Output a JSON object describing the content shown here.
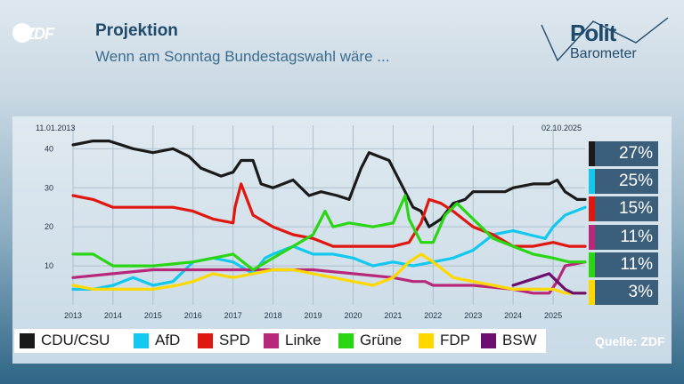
{
  "header": {
    "logo": "ZDF",
    "title": "Projektion",
    "subtitle": "Wenn am Sonntag Bundestagswahl wäre ...",
    "brand_top": "Polit",
    "brand_bottom": "Barometer"
  },
  "source": "Quelle: ZDF",
  "chart_data": {
    "type": "line",
    "start_date": "11.01.2013",
    "end_date": "02.10.2025",
    "x_tick_labels": [
      "2013",
      "2014",
      "2015",
      "2016",
      "2017",
      "2018",
      "2019",
      "2020",
      "2021",
      "2022",
      "2023",
      "2024",
      "2025"
    ],
    "y_tick_labels": [
      "10",
      "20",
      "30",
      "40"
    ],
    "xlim": [
      2013.0,
      2025.8
    ],
    "ylim": [
      0,
      46
    ],
    "grid": true,
    "legend_position": "bottom",
    "series": [
      {
        "name": "CDU/CSU",
        "color": "#1a1a1a",
        "current": "27%",
        "x": [
          2013.0,
          2013.5,
          2013.9,
          2014.5,
          2015.0,
          2015.5,
          2015.9,
          2016.2,
          2016.7,
          2017.0,
          2017.2,
          2017.5,
          2017.7,
          2018.0,
          2018.5,
          2018.9,
          2019.2,
          2019.6,
          2019.9,
          2020.2,
          2020.4,
          2020.9,
          2021.0,
          2021.3,
          2021.5,
          2021.7,
          2021.9,
          2022.2,
          2022.5,
          2022.8,
          2023.0,
          2023.4,
          2023.8,
          2024.0,
          2024.5,
          2024.9,
          2025.1,
          2025.3,
          2025.6,
          2025.8
        ],
        "y": [
          41,
          42,
          42,
          40,
          39,
          40,
          38,
          35,
          33,
          34,
          37,
          37,
          31,
          30,
          32,
          28,
          29,
          28,
          27,
          35,
          39,
          37,
          35,
          29,
          25,
          24,
          20,
          22,
          26,
          27,
          29,
          29,
          29,
          30,
          31,
          31,
          32,
          29,
          27,
          27
        ]
      },
      {
        "name": "AfD",
        "color": "#12c8ee",
        "current": "25%",
        "x": [
          2013.0,
          2013.5,
          2014.0,
          2014.5,
          2015.0,
          2015.5,
          2015.8,
          2016.0,
          2016.5,
          2017.0,
          2017.5,
          2017.8,
          2018.0,
          2018.5,
          2019.0,
          2019.5,
          2020.0,
          2020.5,
          2021.0,
          2021.5,
          2022.0,
          2022.5,
          2023.0,
          2023.5,
          2024.0,
          2024.4,
          2024.8,
          2025.0,
          2025.3,
          2025.8
        ],
        "y": [
          4,
          4,
          5,
          7,
          5,
          6,
          9,
          11,
          12,
          11,
          8,
          12,
          13,
          15,
          13,
          13,
          12,
          10,
          11,
          10,
          11,
          12,
          14,
          18,
          19,
          18,
          17,
          20,
          23,
          25
        ]
      },
      {
        "name": "SPD",
        "color": "#e0170f",
        "current": "15%",
        "x": [
          2013.0,
          2013.5,
          2014.0,
          2014.5,
          2015.0,
          2015.5,
          2016.0,
          2016.5,
          2017.0,
          2017.05,
          2017.2,
          2017.5,
          2018.0,
          2018.5,
          2019.0,
          2019.5,
          2020.0,
          2020.5,
          2021.0,
          2021.4,
          2021.7,
          2021.9,
          2022.2,
          2022.5,
          2023.0,
          2023.5,
          2024.0,
          2024.5,
          2025.0,
          2025.4,
          2025.8
        ],
        "y": [
          28,
          27,
          25,
          25,
          25,
          25,
          24,
          22,
          21,
          25,
          31,
          23,
          20,
          18,
          17,
          15,
          15,
          15,
          15,
          16,
          21,
          27,
          26,
          24,
          20,
          18,
          15,
          15,
          16,
          15,
          15
        ]
      },
      {
        "name": "Linke",
        "color": "#b8287a",
        "current": "11%",
        "x": [
          2013.0,
          2014.0,
          2015.0,
          2016.0,
          2017.0,
          2018.0,
          2019.0,
          2020.0,
          2021.0,
          2021.5,
          2021.8,
          2022.0,
          2023.0,
          2024.0,
          2024.5,
          2024.9,
          2025.1,
          2025.3,
          2025.8
        ],
        "y": [
          7,
          8,
          9,
          9,
          9,
          9,
          9,
          8,
          7,
          6,
          6,
          5,
          5,
          4,
          3,
          3,
          6,
          10,
          11
        ]
      },
      {
        "name": "Grüne",
        "color": "#2ad614",
        "current": "11%",
        "x": [
          2013.0,
          2013.5,
          2014.0,
          2015.0,
          2016.0,
          2017.0,
          2017.5,
          2018.0,
          2018.5,
          2019.0,
          2019.3,
          2019.5,
          2019.9,
          2020.5,
          2021.0,
          2021.3,
          2021.4,
          2021.7,
          2022.0,
          2022.3,
          2022.6,
          2023.0,
          2023.5,
          2024.0,
          2024.5,
          2025.0,
          2025.4,
          2025.8
        ],
        "y": [
          13,
          13,
          10,
          10,
          11,
          13,
          9,
          12,
          15,
          18,
          24,
          20,
          21,
          20,
          21,
          28,
          22,
          16,
          16,
          23,
          26,
          22,
          17,
          15,
          13,
          12,
          11,
          11
        ]
      },
      {
        "name": "FDP",
        "color": "#ffd800",
        "current": "3%",
        "x": [
          2013.0,
          2013.5,
          2014.0,
          2015.0,
          2015.6,
          2016.0,
          2016.5,
          2017.0,
          2017.5,
          2018.0,
          2018.5,
          2019.0,
          2020.0,
          2020.5,
          2021.0,
          2021.4,
          2021.7,
          2022.0,
          2022.5,
          2023.0,
          2023.5,
          2024.0,
          2024.5,
          2025.0,
          2025.3,
          2025.8
        ],
        "y": [
          5,
          4,
          4,
          4,
          5,
          6,
          8,
          7,
          8,
          9,
          9,
          8,
          6,
          5,
          7,
          11,
          13,
          11,
          7,
          6,
          5,
          4,
          4,
          4,
          3,
          3
        ]
      },
      {
        "name": "BSW",
        "color": "#6d0f6e",
        "current": "",
        "x": [
          2024.0,
          2024.3,
          2024.6,
          2024.9,
          2025.1,
          2025.3,
          2025.5,
          2025.8
        ],
        "y": [
          5,
          6,
          7,
          8,
          6,
          4,
          3,
          3
        ]
      }
    ]
  }
}
